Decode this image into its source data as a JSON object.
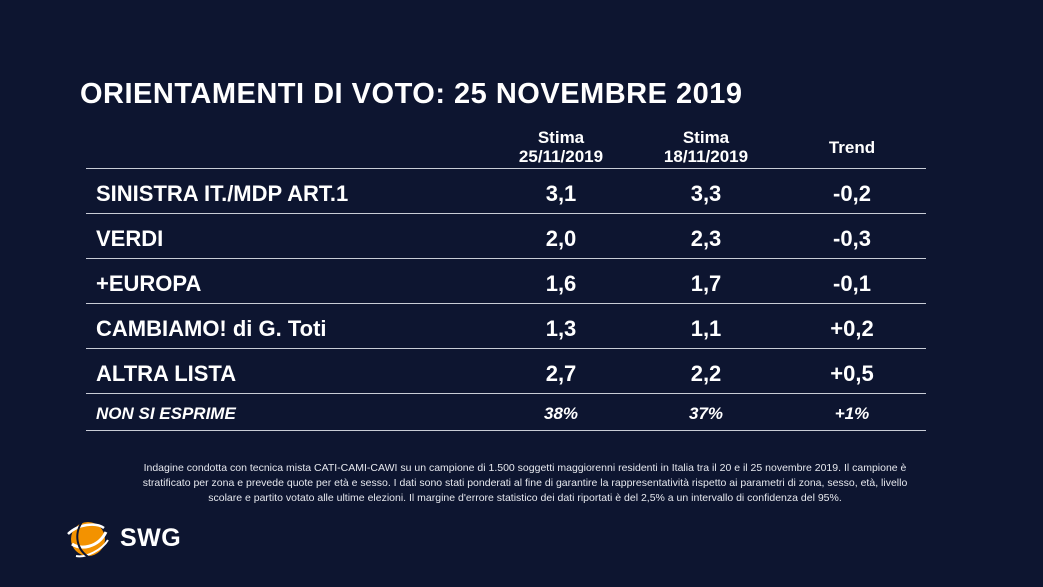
{
  "title": "ORIENTAMENTI DI VOTO: 25 NOVEMBRE 2019",
  "headers": {
    "col1_line1": "Stima",
    "col1_line2": "25/11/2019",
    "col2_line1": "Stima",
    "col2_line2": "18/11/2019",
    "col3": "Trend"
  },
  "chart_data": {
    "type": "table",
    "columns": [
      "Stima 25/11/2019",
      "Stima 18/11/2019",
      "Trend"
    ],
    "rows": [
      {
        "label": "SINISTRA IT./MDP ART.1",
        "stima_25": "3,1",
        "stima_18": "3,3",
        "trend": "-0,2"
      },
      {
        "label": "VERDI",
        "stima_25": "2,0",
        "stima_18": "2,3",
        "trend": "-0,3"
      },
      {
        "label": "+EUROPA",
        "stima_25": "1,6",
        "stima_18": "1,7",
        "trend": "-0,1"
      },
      {
        "label": "CAMBIAMO! di G. Toti",
        "stima_25": "1,3",
        "stima_18": "1,1",
        "trend": "+0,2"
      },
      {
        "label": "ALTRA LISTA",
        "stima_25": "2,7",
        "stima_18": "2,2",
        "trend": "+0,5"
      },
      {
        "label": "NON SI ESPRIME",
        "stima_25": "38%",
        "stima_18": "37%",
        "trend": "+1%"
      }
    ]
  },
  "footnote": {
    "line1": "Indagine condotta con tecnica mista CATI-CAMI-CAWI su un campione di 1.500 soggetti maggiorenni residenti in Italia tra il 20 e il 25 novembre 2019. Il campione è",
    "line2": "stratificato per zona e prevede quote per età e sesso. I dati sono stati ponderati al fine di garantire la rappresentatività rispetto ai parametri di zona, sesso, età, livello",
    "line3": "scolare e partito votato alle ultime elezioni. Il margine d'errore statistico dei dati riportati è del 2,5% a un intervallo di confidenza del 95%."
  },
  "logo": {
    "text": "SWG",
    "icon": "swg-globe-icon",
    "accent": "#f39200"
  },
  "colors": {
    "background": "#0d1530",
    "text": "#ffffff",
    "rule": "#c8ccd6"
  }
}
